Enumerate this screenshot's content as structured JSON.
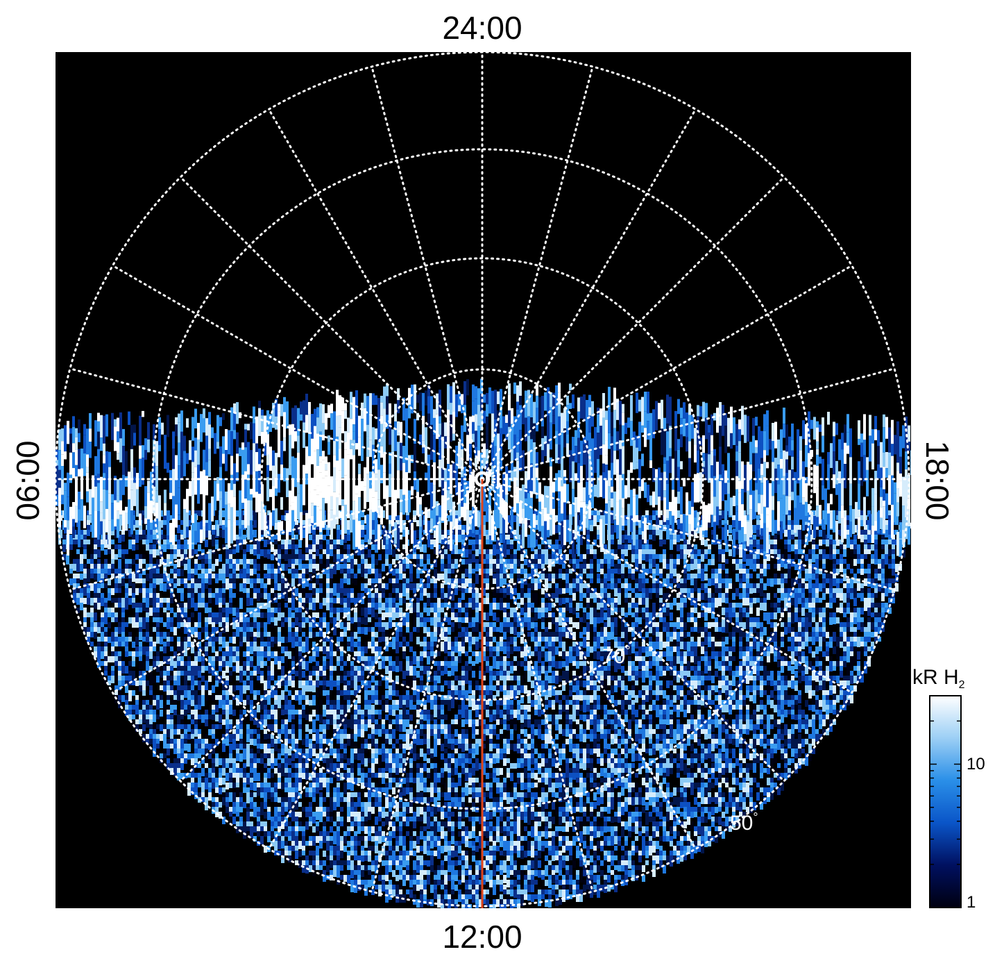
{
  "chart_data": {
    "type": "heatmap",
    "projection": "polar",
    "local_time_labels": {
      "top": "24:00",
      "bottom": "12:00",
      "left": "06:00",
      "right": "18:00"
    },
    "latitude_labels": [
      {
        "text": "70",
        "deg": "°"
      },
      {
        "text": "50",
        "deg": "°"
      }
    ],
    "grid": true,
    "colorbar": {
      "title_main": "kR H",
      "title_sub": "2",
      "scale": "log",
      "range": [
        1,
        30
      ],
      "ticks": [
        "10",
        "1"
      ],
      "colors": [
        "#000010",
        "#001060",
        "#0a55c8",
        "#2a8fe8",
        "#9ccff5",
        "#ffffff"
      ],
      "position": "right"
    },
    "colors": {
      "background": "#000000",
      "grid": "#ffffff",
      "meridian": "#e0441a"
    }
  }
}
